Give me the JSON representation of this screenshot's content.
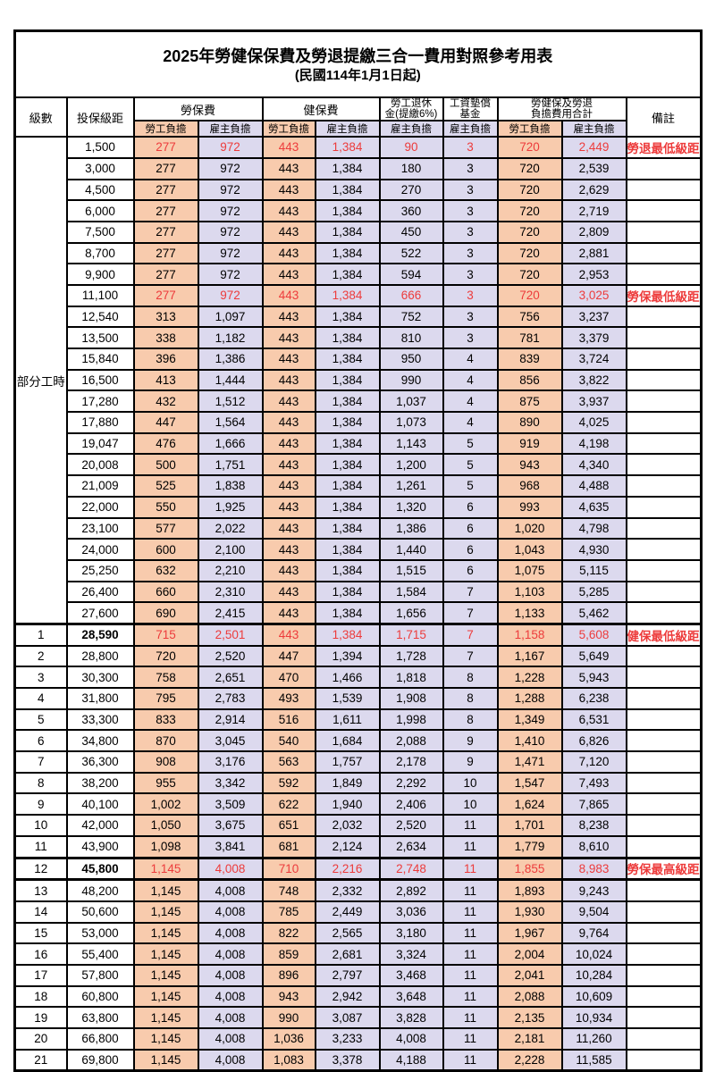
{
  "title": "2025年勞健保保費及勞退提繳三合一費用對照參考用表",
  "subtitle": "(民國114年1月1日起)",
  "header": {
    "level": "級數",
    "bracket": "投保級距",
    "labor_insurance": "勞保費",
    "health_insurance": "健保費",
    "pension_line1": "勞工退休",
    "pension_line2": "金(提繳6%)",
    "wage_fund_line1": "工資墊償",
    "wage_fund_line2": "基金",
    "total_line1": "勞健保及勞退",
    "total_line2": "負擔費用合計",
    "remark": "備註",
    "employee_burden": "勞工負擔",
    "employer_burden": "雇主負擔"
  },
  "part_time_label": "部分工時",
  "colors": {
    "employee_bg": "#F8CBAD",
    "employer_bg": "#DCD9EE",
    "highlight_red": "#ED3B3B",
    "border": "#000000"
  },
  "rows": [
    {
      "level": "",
      "bracket": "1,500",
      "values": [
        "277",
        "972",
        "443",
        "1,384",
        "90",
        "3",
        "720",
        "2,449"
      ],
      "remark": "勞退最低級距",
      "red": true
    },
    {
      "level": "",
      "bracket": "3,000",
      "values": [
        "277",
        "972",
        "443",
        "1,384",
        "180",
        "3",
        "720",
        "2,539"
      ],
      "remark": ""
    },
    {
      "level": "",
      "bracket": "4,500",
      "values": [
        "277",
        "972",
        "443",
        "1,384",
        "270",
        "3",
        "720",
        "2,629"
      ],
      "remark": ""
    },
    {
      "level": "",
      "bracket": "6,000",
      "values": [
        "277",
        "972",
        "443",
        "1,384",
        "360",
        "3",
        "720",
        "2,719"
      ],
      "remark": ""
    },
    {
      "level": "",
      "bracket": "7,500",
      "values": [
        "277",
        "972",
        "443",
        "1,384",
        "450",
        "3",
        "720",
        "2,809"
      ],
      "remark": ""
    },
    {
      "level": "",
      "bracket": "8,700",
      "values": [
        "277",
        "972",
        "443",
        "1,384",
        "522",
        "3",
        "720",
        "2,881"
      ],
      "remark": ""
    },
    {
      "level": "",
      "bracket": "9,900",
      "values": [
        "277",
        "972",
        "443",
        "1,384",
        "594",
        "3",
        "720",
        "2,953"
      ],
      "remark": ""
    },
    {
      "level": "",
      "bracket": "11,100",
      "values": [
        "277",
        "972",
        "443",
        "1,384",
        "666",
        "3",
        "720",
        "3,025"
      ],
      "remark": "勞保最低級距",
      "red": true
    },
    {
      "level": "",
      "bracket": "12,540",
      "values": [
        "313",
        "1,097",
        "443",
        "1,384",
        "752",
        "3",
        "756",
        "3,237"
      ],
      "remark": ""
    },
    {
      "level": "",
      "bracket": "13,500",
      "values": [
        "338",
        "1,182",
        "443",
        "1,384",
        "810",
        "3",
        "781",
        "3,379"
      ],
      "remark": ""
    },
    {
      "level": "",
      "bracket": "15,840",
      "values": [
        "396",
        "1,386",
        "443",
        "1,384",
        "950",
        "4",
        "839",
        "3,724"
      ],
      "remark": ""
    },
    {
      "level": "",
      "bracket": "16,500",
      "values": [
        "413",
        "1,444",
        "443",
        "1,384",
        "990",
        "4",
        "856",
        "3,822"
      ],
      "remark": ""
    },
    {
      "level": "",
      "bracket": "17,280",
      "values": [
        "432",
        "1,512",
        "443",
        "1,384",
        "1,037",
        "4",
        "875",
        "3,937"
      ],
      "remark": ""
    },
    {
      "level": "",
      "bracket": "17,880",
      "values": [
        "447",
        "1,564",
        "443",
        "1,384",
        "1,073",
        "4",
        "890",
        "4,025"
      ],
      "remark": ""
    },
    {
      "level": "",
      "bracket": "19,047",
      "values": [
        "476",
        "1,666",
        "443",
        "1,384",
        "1,143",
        "5",
        "919",
        "4,198"
      ],
      "remark": ""
    },
    {
      "level": "",
      "bracket": "20,008",
      "values": [
        "500",
        "1,751",
        "443",
        "1,384",
        "1,200",
        "5",
        "943",
        "4,340"
      ],
      "remark": ""
    },
    {
      "level": "",
      "bracket": "21,009",
      "values": [
        "525",
        "1,838",
        "443",
        "1,384",
        "1,261",
        "5",
        "968",
        "4,488"
      ],
      "remark": ""
    },
    {
      "level": "",
      "bracket": "22,000",
      "values": [
        "550",
        "1,925",
        "443",
        "1,384",
        "1,320",
        "6",
        "993",
        "4,635"
      ],
      "remark": ""
    },
    {
      "level": "",
      "bracket": "23,100",
      "values": [
        "577",
        "2,022",
        "443",
        "1,384",
        "1,386",
        "6",
        "1,020",
        "4,798"
      ],
      "remark": ""
    },
    {
      "level": "",
      "bracket": "24,000",
      "values": [
        "600",
        "2,100",
        "443",
        "1,384",
        "1,440",
        "6",
        "1,043",
        "4,930"
      ],
      "remark": ""
    },
    {
      "level": "",
      "bracket": "25,250",
      "values": [
        "632",
        "2,210",
        "443",
        "1,384",
        "1,515",
        "6",
        "1,075",
        "5,115"
      ],
      "remark": ""
    },
    {
      "level": "",
      "bracket": "26,400",
      "values": [
        "660",
        "2,310",
        "443",
        "1,384",
        "1,584",
        "7",
        "1,103",
        "5,285"
      ],
      "remark": ""
    },
    {
      "level": "",
      "bracket": "27,600",
      "values": [
        "690",
        "2,415",
        "443",
        "1,384",
        "1,656",
        "7",
        "1,133",
        "5,462"
      ],
      "remark": ""
    },
    {
      "level": "1",
      "bracket": "28,590",
      "values": [
        "715",
        "2,501",
        "443",
        "1,384",
        "1,715",
        "7",
        "1,158",
        "5,608"
      ],
      "remark": "健保最低級距",
      "red": true,
      "bold": true,
      "thick_top": true
    },
    {
      "level": "2",
      "bracket": "28,800",
      "values": [
        "720",
        "2,520",
        "447",
        "1,394",
        "1,728",
        "7",
        "1,167",
        "5,649"
      ],
      "remark": ""
    },
    {
      "level": "3",
      "bracket": "30,300",
      "values": [
        "758",
        "2,651",
        "470",
        "1,466",
        "1,818",
        "8",
        "1,228",
        "5,943"
      ],
      "remark": ""
    },
    {
      "level": "4",
      "bracket": "31,800",
      "values": [
        "795",
        "2,783",
        "493",
        "1,539",
        "1,908",
        "8",
        "1,288",
        "6,238"
      ],
      "remark": ""
    },
    {
      "level": "5",
      "bracket": "33,300",
      "values": [
        "833",
        "2,914",
        "516",
        "1,611",
        "1,998",
        "8",
        "1,349",
        "6,531"
      ],
      "remark": ""
    },
    {
      "level": "6",
      "bracket": "34,800",
      "values": [
        "870",
        "3,045",
        "540",
        "1,684",
        "2,088",
        "9",
        "1,410",
        "6,826"
      ],
      "remark": ""
    },
    {
      "level": "7",
      "bracket": "36,300",
      "values": [
        "908",
        "3,176",
        "563",
        "1,757",
        "2,178",
        "9",
        "1,471",
        "7,120"
      ],
      "remark": ""
    },
    {
      "level": "8",
      "bracket": "38,200",
      "values": [
        "955",
        "3,342",
        "592",
        "1,849",
        "2,292",
        "10",
        "1,547",
        "7,493"
      ],
      "remark": ""
    },
    {
      "level": "9",
      "bracket": "40,100",
      "values": [
        "1,002",
        "3,509",
        "622",
        "1,940",
        "2,406",
        "10",
        "1,624",
        "7,865"
      ],
      "remark": ""
    },
    {
      "level": "10",
      "bracket": "42,000",
      "values": [
        "1,050",
        "3,675",
        "651",
        "2,032",
        "2,520",
        "11",
        "1,701",
        "8,238"
      ],
      "remark": ""
    },
    {
      "level": "11",
      "bracket": "43,900",
      "values": [
        "1,098",
        "3,841",
        "681",
        "2,124",
        "2,634",
        "11",
        "1,779",
        "8,610"
      ],
      "remark": ""
    },
    {
      "level": "12",
      "bracket": "45,800",
      "values": [
        "1,145",
        "4,008",
        "710",
        "2,216",
        "2,748",
        "11",
        "1,855",
        "8,983"
      ],
      "remark": "勞保最高級距",
      "red": true,
      "bold": true,
      "thick_top": true,
      "thick_bottom": true
    },
    {
      "level": "13",
      "bracket": "48,200",
      "values": [
        "1,145",
        "4,008",
        "748",
        "2,332",
        "2,892",
        "11",
        "1,893",
        "9,243"
      ],
      "remark": ""
    },
    {
      "level": "14",
      "bracket": "50,600",
      "values": [
        "1,145",
        "4,008",
        "785",
        "2,449",
        "3,036",
        "11",
        "1,930",
        "9,504"
      ],
      "remark": ""
    },
    {
      "level": "15",
      "bracket": "53,000",
      "values": [
        "1,145",
        "4,008",
        "822",
        "2,565",
        "3,180",
        "11",
        "1,967",
        "9,764"
      ],
      "remark": ""
    },
    {
      "level": "16",
      "bracket": "55,400",
      "values": [
        "1,145",
        "4,008",
        "859",
        "2,681",
        "3,324",
        "11",
        "2,004",
        "10,024"
      ],
      "remark": ""
    },
    {
      "level": "17",
      "bracket": "57,800",
      "values": [
        "1,145",
        "4,008",
        "896",
        "2,797",
        "3,468",
        "11",
        "2,041",
        "10,284"
      ],
      "remark": ""
    },
    {
      "level": "18",
      "bracket": "60,800",
      "values": [
        "1,145",
        "4,008",
        "943",
        "2,942",
        "3,648",
        "11",
        "2,088",
        "10,609"
      ],
      "remark": ""
    },
    {
      "level": "19",
      "bracket": "63,800",
      "values": [
        "1,145",
        "4,008",
        "990",
        "3,087",
        "3,828",
        "11",
        "2,135",
        "10,934"
      ],
      "remark": ""
    },
    {
      "level": "20",
      "bracket": "66,800",
      "values": [
        "1,145",
        "4,008",
        "1,036",
        "3,233",
        "4,008",
        "11",
        "2,181",
        "11,260"
      ],
      "remark": ""
    },
    {
      "level": "21",
      "bracket": "69,800",
      "values": [
        "1,145",
        "4,008",
        "1,083",
        "3,378",
        "4,188",
        "11",
        "2,228",
        "11,585"
      ],
      "remark": ""
    }
  ]
}
